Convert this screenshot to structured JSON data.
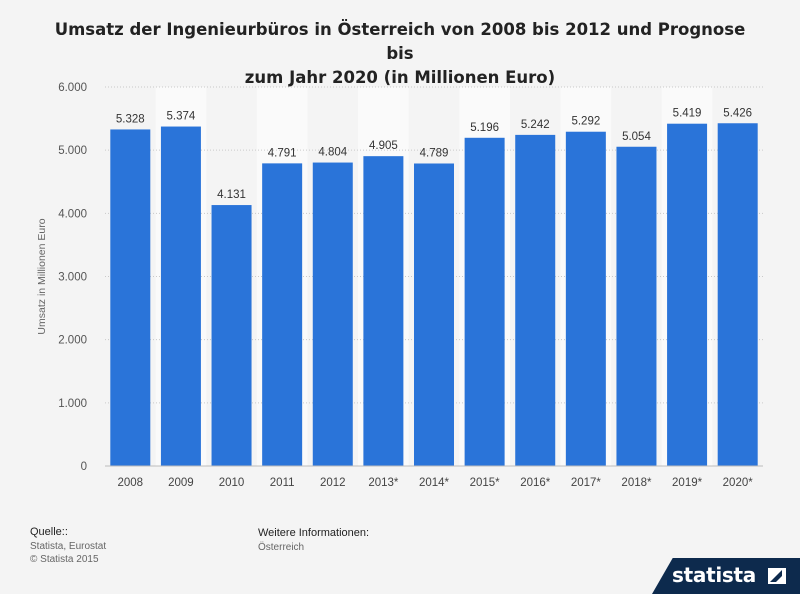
{
  "chart_data": {
    "type": "bar",
    "title": "Umsatz der Ingenieurbüros in Österreich von 2008 bis 2012 und Prognose bis zum Jahr 2020 (in Millionen Euro)",
    "title_lines": [
      "Umsatz der Ingenieurbüros in Österreich von 2008 bis 2012 und Prognose bis",
      "zum Jahr 2020 (in Millionen Euro)"
    ],
    "ylabel": "Umsatz  in Millionen Euro",
    "xlabel": "",
    "ylim": [
      0,
      6000
    ],
    "yticks": [
      0,
      1000,
      2000,
      3000,
      4000,
      5000,
      6000
    ],
    "ytick_labels": [
      "0",
      "1.000",
      "2.000",
      "3.000",
      "4.000",
      "5.000",
      "6.000"
    ],
    "categories": [
      "2008",
      "2009",
      "2010",
      "2011",
      "2012",
      "2013*",
      "2014*",
      "2015*",
      "2016*",
      "2017*",
      "2018*",
      "2019*",
      "2020*"
    ],
    "values": [
      5328,
      5374,
      4131,
      4791,
      4804,
      4905,
      4789,
      5196,
      5242,
      5292,
      5054,
      5419,
      5426
    ],
    "value_labels": [
      "5.328",
      "5.374",
      "4.131",
      "4.791",
      "4.804",
      "4.905",
      "4.789",
      "5.196",
      "5.242",
      "5.292",
      "5.054",
      "5.419",
      "5.426"
    ],
    "bar_color": "#2a74d9",
    "grid": true,
    "legend": "none"
  },
  "footer": {
    "source_label": "Quelle::",
    "source_lines": [
      "Statista, Eurostat",
      "© Statista 2015"
    ],
    "info_label": "Weitere Informationen:",
    "info_value": "Österreich"
  },
  "brand": {
    "name": "statista",
    "color": "#0d2a4d",
    "icon": "statista-arrow-icon"
  }
}
